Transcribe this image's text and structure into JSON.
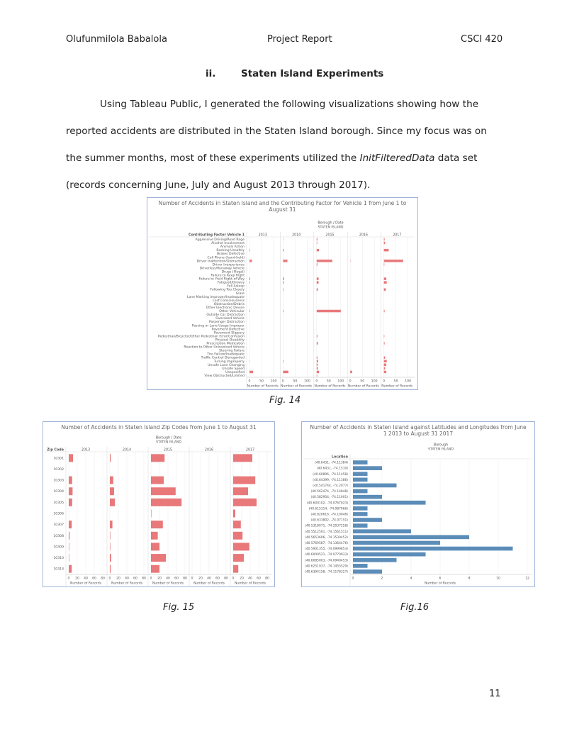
{
  "header": {
    "author": "Olufunmilola Babalola",
    "title": "Project Report",
    "course": "CSCI 420"
  },
  "section": {
    "number": "ii.",
    "title": "Staten Island Experiments"
  },
  "paragraph": {
    "before": "Using Tableau Public, I generated the following visualizations showing how the reported accidents are distributed in the Staten Island borough. Since my focus was on the summer months, most of these experiments utilized the ",
    "dataset": "InitFilteredData",
    "after": " data set (records concerning June, July and August 2013 through 2017)."
  },
  "chart_data": [
    {
      "type": "bar",
      "title": "Number of Accidents in Staten Island and the Contributing Factor for Vehicle 1 from June 1 to August 31",
      "column_header": "Borough / Date",
      "column_subheader": "STATEN ISLAND",
      "row_header": "Contributing Factor Vehicle 1",
      "x_label": "Number of Records",
      "categories": [
        "Aggressive Driving/Road Rage",
        "Alcohol Involvement",
        "Animals Action",
        "Backing Unsafely",
        "Brakes Defective",
        "Cell Phone (hand-held)",
        "Driver Inattention/Distraction",
        "Driver Inexperience",
        "Driverless/Runaway Vehicle",
        "Drugs (Illegal)",
        "Failure to Keep Right",
        "Failure to Yield Right-of-Way",
        "Fatigued/Drowsy",
        "Fell Asleep",
        "Following Too Closely",
        "Glare",
        "Lane Marking Improper/Inadequate",
        "Lost Consciousness",
        "Obstruction/Debris",
        "Other Electronic Device",
        "Other Vehicular",
        "Outside Car Distraction",
        "Oversized Vehicle",
        "Passenger Distraction",
        "Passing or Lane Usage Improper",
        "Pavement Defective",
        "Pavement Slippery",
        "Pedestrian/Bicyclist/Other Pedestrian Error/Confusion",
        "Physical Disability",
        "Prescription Medication",
        "Reaction to Other Uninvolved Vehicle",
        "Steering Failure",
        "Tire Failure/Inadequate",
        "Traffic Control Disregarded",
        "Turning Improperly",
        "Unsafe Lane Changing",
        "Unsafe Speed",
        "Unspecified",
        "View Obstructed/Limited"
      ],
      "series": [
        {
          "name": "2013",
          "color": "#e8787a",
          "values": [
            0,
            0,
            0,
            2,
            0,
            0,
            10,
            0,
            0,
            0,
            0,
            3,
            2,
            0,
            0,
            0,
            0,
            0,
            0,
            0,
            2,
            0,
            0,
            0,
            0,
            0,
            0,
            0,
            0,
            0,
            0,
            0,
            0,
            0,
            1,
            0,
            0,
            15,
            0
          ]
        },
        {
          "name": "2014",
          "color": "#e8787a",
          "values": [
            1,
            0,
            0,
            3,
            0,
            0,
            18,
            0,
            0,
            0,
            0,
            4,
            3,
            0,
            2,
            0,
            0,
            0,
            0,
            0,
            2,
            0,
            0,
            0,
            0,
            0,
            0,
            0,
            0,
            0,
            0,
            0,
            0,
            0,
            2,
            0,
            0,
            22,
            0
          ]
        },
        {
          "name": "2015",
          "color": "#e8787a",
          "values": [
            3,
            2,
            0,
            10,
            0,
            0,
            65,
            3,
            0,
            0,
            0,
            8,
            8,
            0,
            5,
            0,
            0,
            0,
            0,
            0,
            100,
            0,
            0,
            0,
            0,
            0,
            0,
            3,
            0,
            5,
            0,
            0,
            0,
            3,
            6,
            4,
            5,
            10,
            2
          ]
        },
        {
          "name": "2016",
          "color": "#e8787a",
          "values": [
            0,
            0,
            0,
            0,
            0,
            0,
            1,
            0,
            0,
            0,
            0,
            0,
            0,
            0,
            0,
            0,
            0,
            0,
            0,
            0,
            0,
            0,
            0,
            0,
            0,
            0,
            0,
            0,
            0,
            0,
            0,
            0,
            0,
            0,
            0,
            0,
            0,
            8,
            0
          ]
        },
        {
          "name": "2017",
          "color": "#e8787a",
          "values": [
            3,
            5,
            0,
            20,
            0,
            0,
            80,
            2,
            0,
            0,
            0,
            10,
            12,
            0,
            8,
            0,
            0,
            0,
            0,
            0,
            3,
            0,
            0,
            0,
            0,
            0,
            0,
            2,
            0,
            3,
            0,
            0,
            0,
            5,
            12,
            10,
            5,
            10,
            0
          ]
        }
      ],
      "xlim": [
        0,
        110
      ],
      "xticks": [
        0,
        50,
        100
      ],
      "caption": "Fig. 14"
    },
    {
      "type": "bar",
      "title": "Number of Accidents in Staten Island Zip Codes from June 1 to August 31",
      "column_header": "Borough / Date",
      "column_subheader": "STATEN ISLAND",
      "row_header": "Zip Code",
      "x_label": "Number of Records",
      "categories": [
        "10301",
        "10302",
        "10303",
        "10304",
        "10305",
        "10306",
        "10307",
        "10308",
        "10309",
        "10310",
        "10314"
      ],
      "series": [
        {
          "name": "2013",
          "color": "#e8787a",
          "values": [
            10,
            0,
            8,
            9,
            8,
            0,
            7,
            2,
            1,
            1,
            7
          ]
        },
        {
          "name": "2014",
          "color": "#e8787a",
          "values": [
            2,
            0,
            8,
            10,
            12,
            0,
            6,
            1,
            1,
            3,
            2
          ]
        },
        {
          "name": "2015",
          "color": "#e8787a",
          "values": [
            32,
            0,
            30,
            58,
            72,
            1,
            28,
            16,
            20,
            35,
            20
          ]
        },
        {
          "name": "2016",
          "color": "#e8787a",
          "values": [
            0,
            0,
            0,
            0,
            0,
            0,
            0,
            0,
            0,
            0,
            0
          ]
        },
        {
          "name": "2017",
          "color": "#e8787a",
          "values": [
            45,
            0,
            52,
            35,
            55,
            5,
            18,
            22,
            38,
            25,
            12
          ]
        }
      ],
      "xlim": [
        0,
        80
      ],
      "xticks": [
        0,
        20,
        40,
        60,
        80
      ],
      "caption": "Fig. 15"
    },
    {
      "type": "bar",
      "title": "Number of Accidents in Staten Island against Latitudes and Longitudes from June 1 2013 to August 31 2017",
      "column_header": "Borough",
      "column_subheader": "STATEN ISLAND",
      "row_header": "Location",
      "x_label": "Number of Records",
      "categories": [
        "(40.6431, -74.11384)",
        "(40.6431, -74.1510)",
        "(40.60896, -74.11458)",
        "(40.64399, -74.11386)",
        "(40.541744, -74.2077)",
        "(40.562474, -74.14848)",
        "(40.582954, -74.11001)",
        "(40.600102, -74.0767023)",
        "(40.615314, -74.087966)",
        "(40.620616, -74.10046)",
        "(40.633802, -74.07151)",
        "(40.5318071, -74.2037258)",
        "(40.5512501, -74.1561511)",
        "(40.5653606, -74.1530452)",
        "(40.5769587, -74.1364476)",
        "(40.5901355, -74.0999853)",
        "(40.6009521, -74.0770933)",
        "(40.6085003, -74.0940453)",
        "(40.6251937, -74.1455529)",
        "(40.6394158, -74.1178327)"
      ],
      "series": [
        {
          "color": "#5b8db8",
          "values": [
            1,
            2,
            1,
            1,
            3,
            1,
            2,
            5,
            1,
            1,
            2,
            1,
            4,
            8,
            6,
            11,
            5,
            3,
            1,
            2
          ]
        }
      ],
      "xlim": [
        0,
        12
      ],
      "xticks": [
        0,
        2,
        4,
        6,
        8,
        10,
        12
      ],
      "caption": "Fig.16"
    }
  ],
  "page_number": "11"
}
